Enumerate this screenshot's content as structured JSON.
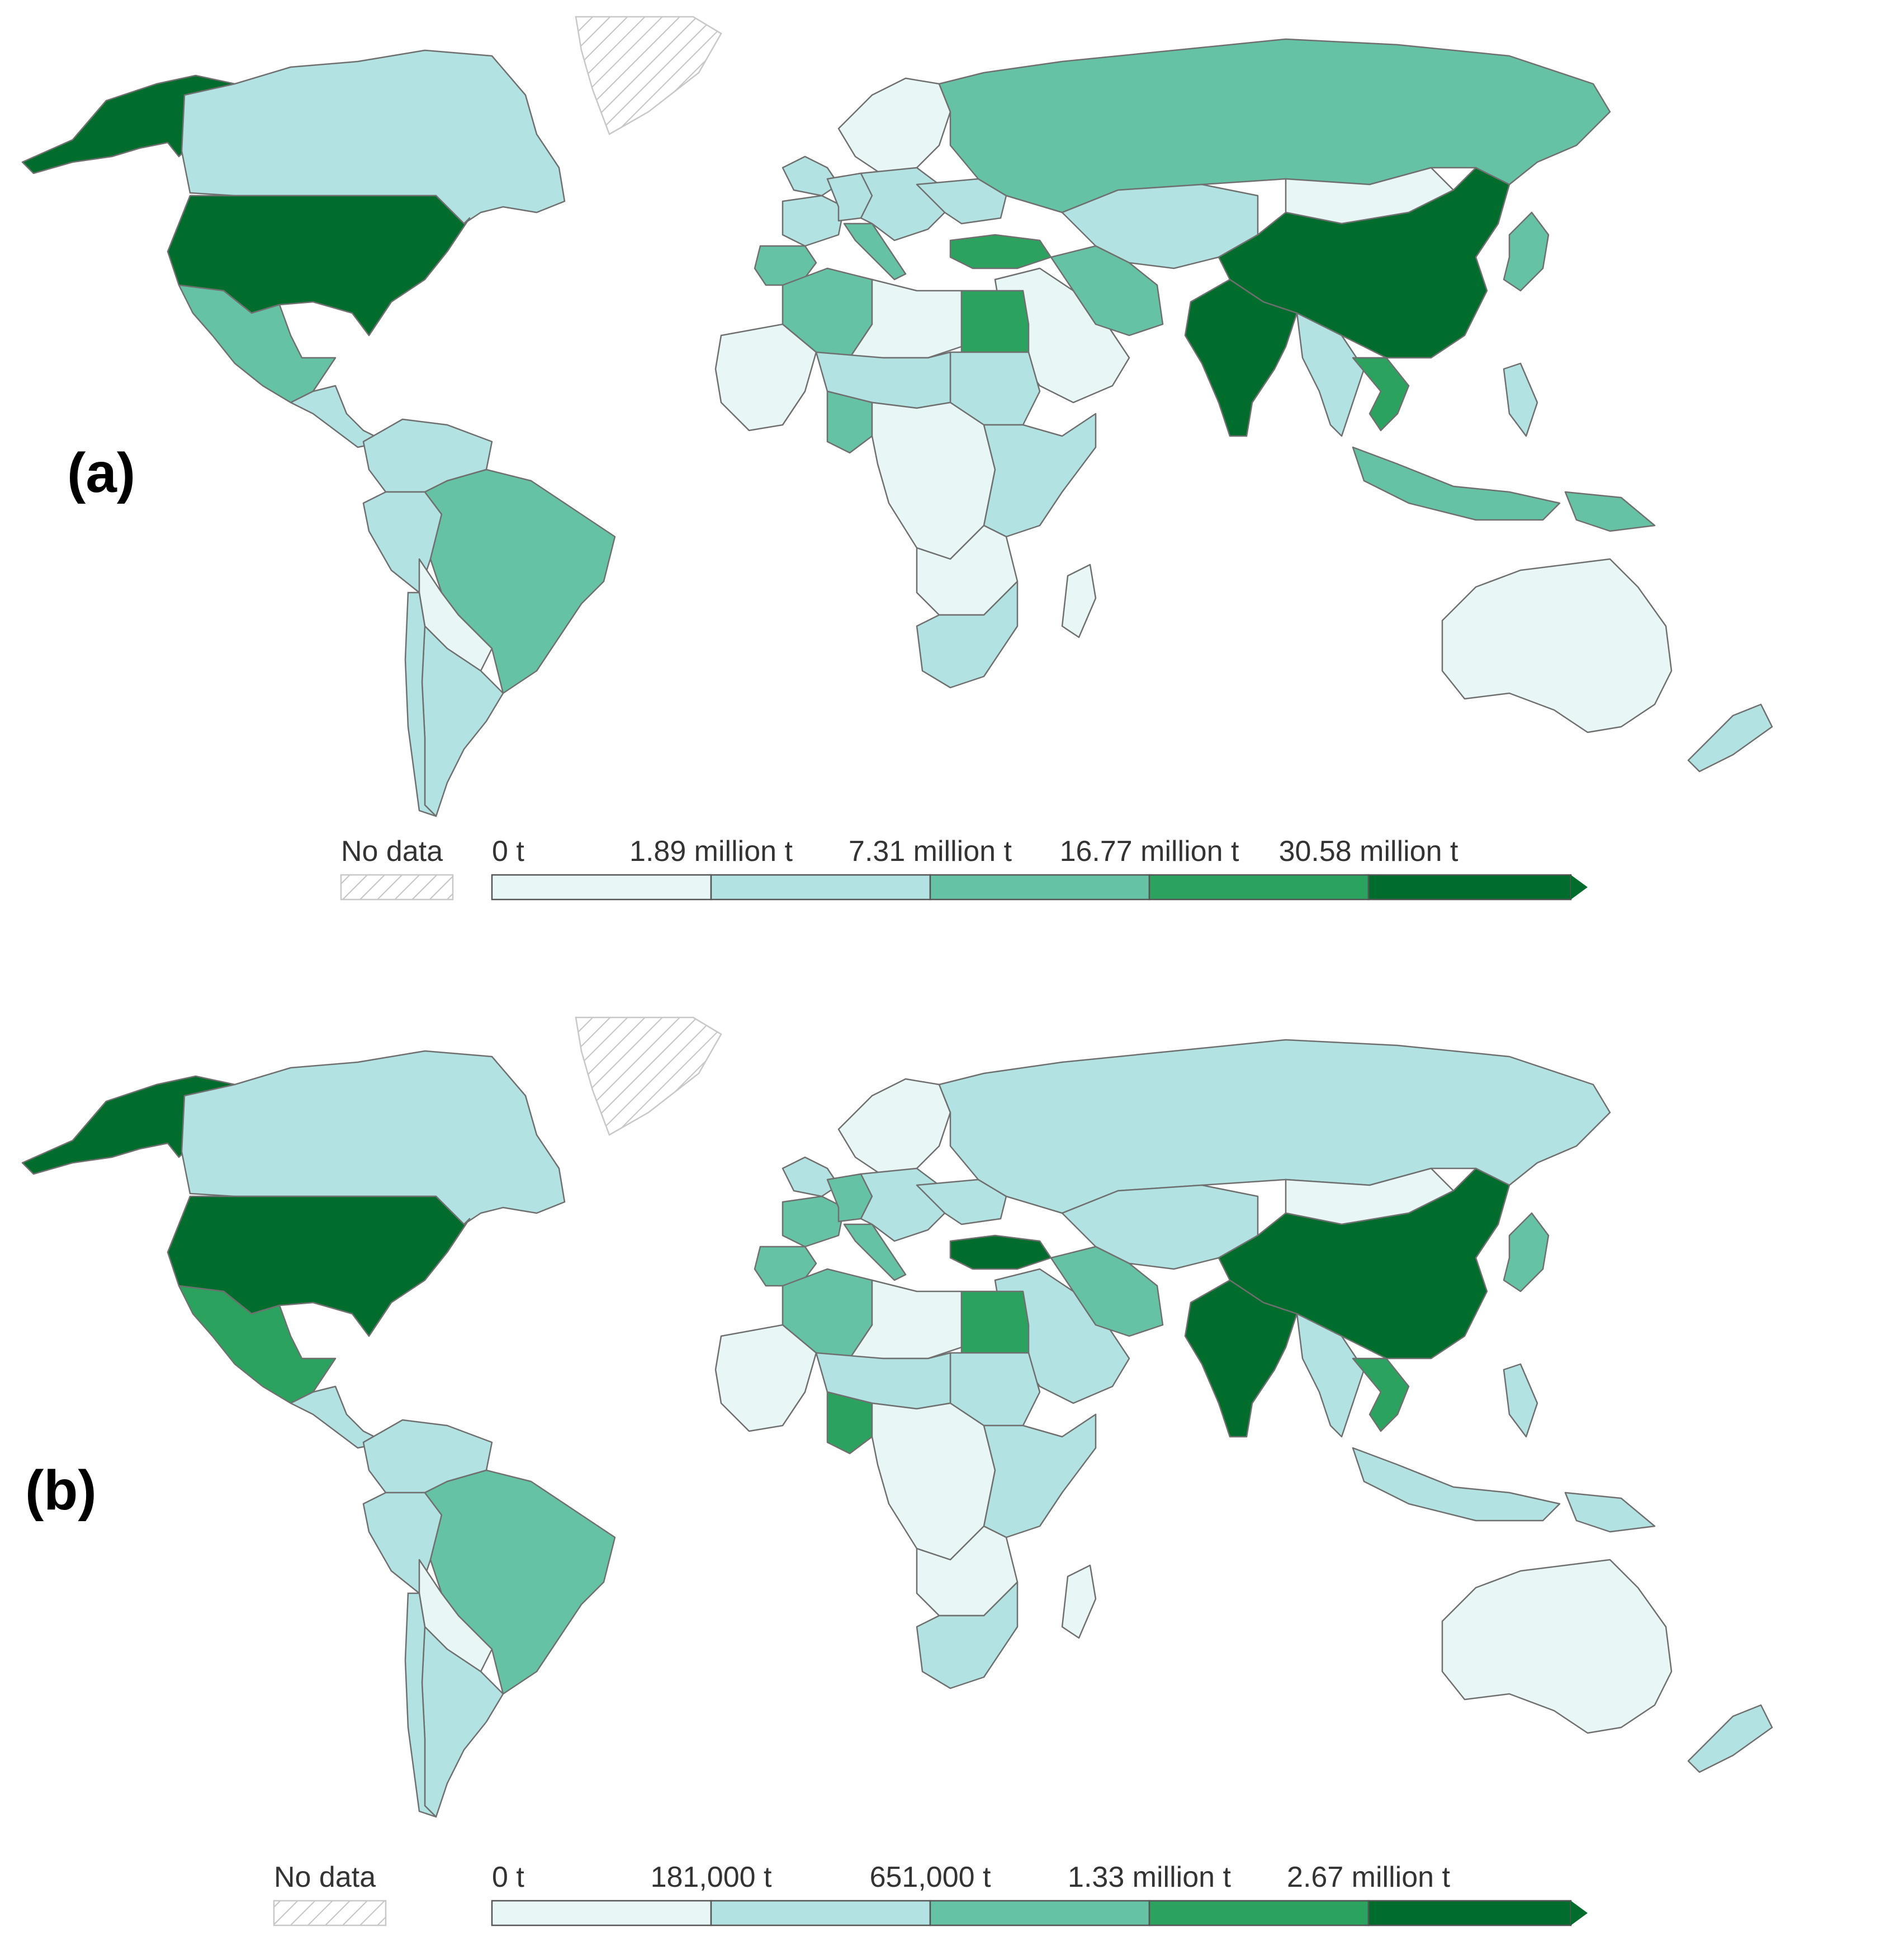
{
  "panels": [
    {
      "label": "(a)",
      "legend": {
        "no_data_label": "No data",
        "ticks": [
          "0 t",
          "1.89 million t",
          "7.31 million t",
          "16.77 million t",
          "30.58 million t"
        ],
        "bins": [
          "#e8f6f6",
          "#b2e2e2",
          "#66c2a4",
          "#2ca25f",
          "#006d2c"
        ]
      },
      "country_classes": {
        "usa": 4,
        "alaska": 4,
        "canada": 1,
        "mexico": 2,
        "central_america": 1,
        "greenland": -1,
        "brazil": 2,
        "colombia_venezuela": 1,
        "peru": 1,
        "bolivia_paraguay": 0,
        "argentina": 1,
        "chile": 1,
        "europe_west": 1,
        "spain": 2,
        "italy": 2,
        "france": 1,
        "germany": 1,
        "eastern_europe": 1,
        "scandinavia": 0,
        "ukraine": 1,
        "russia": 2,
        "turkey": 3,
        "kazakhstan_central_asia": 1,
        "iran": 2,
        "middle_east": 0,
        "china": 4,
        "india": 4,
        "mongolia": 0,
        "japan_korea": 2,
        "southeast_asia": 1,
        "vietnam": 3,
        "indonesia": 2,
        "philippines": 1,
        "australia": 0,
        "new_zealand": 1,
        "png": 2,
        "egypt": 3,
        "algeria": 2,
        "north_africa_other": 0,
        "nigeria": 2,
        "sahel": 1,
        "west_africa": 0,
        "sudan": 1,
        "central_africa": 0,
        "east_africa": 1,
        "south_africa": 1,
        "southern_africa": 0,
        "madagascar": 0
      }
    },
    {
      "label": "(b)",
      "legend": {
        "no_data_label": "No data",
        "ticks": [
          "0 t",
          "181,000 t",
          "651,000 t",
          "1.33 million t",
          "2.67 million t"
        ],
        "bins": [
          "#e8f6f6",
          "#b2e2e2",
          "#66c2a4",
          "#2ca25f",
          "#006d2c"
        ]
      },
      "country_classes": {
        "usa": 4,
        "alaska": 4,
        "canada": 1,
        "mexico": 3,
        "central_america": 1,
        "greenland": -1,
        "brazil": 2,
        "colombia_venezuela": 1,
        "peru": 1,
        "bolivia_paraguay": 0,
        "argentina": 1,
        "chile": 1,
        "europe_west": 1,
        "spain": 2,
        "italy": 2,
        "france": 2,
        "germany": 2,
        "eastern_europe": 1,
        "scandinavia": 0,
        "ukraine": 1,
        "russia": 1,
        "turkey": 4,
        "kazakhstan_central_asia": 1,
        "iran": 2,
        "middle_east": 1,
        "china": 4,
        "india": 4,
        "mongolia": 0,
        "japan_korea": 2,
        "southeast_asia": 1,
        "vietnam": 3,
        "indonesia": 1,
        "philippines": 1,
        "australia": 0,
        "new_zealand": 1,
        "png": 1,
        "egypt": 3,
        "algeria": 2,
        "north_africa_other": 0,
        "nigeria": 3,
        "sahel": 1,
        "west_africa": 0,
        "sudan": 1,
        "central_africa": 0,
        "east_africa": 1,
        "south_africa": 1,
        "southern_africa": 0,
        "madagascar": 0
      }
    }
  ]
}
